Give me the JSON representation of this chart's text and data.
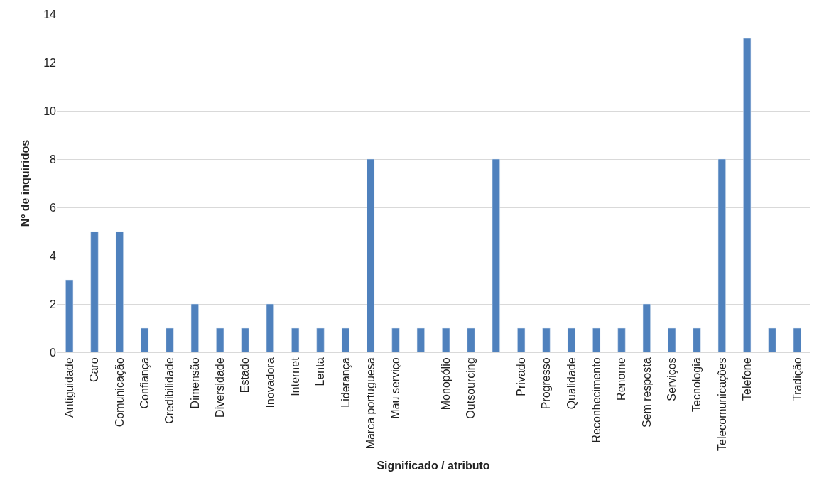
{
  "chart_data": {
    "type": "bar",
    "xlabel": "Significado / atributo",
    "ylabel": "Nº de inquiridos",
    "categories": [
      "Antiguidade",
      "Caro",
      "Comunicação",
      "Confiança",
      "Credibilidade",
      "Dimensão",
      "Diversidade",
      "Estado",
      "Inovadora",
      "Internet",
      "Lenta",
      "Liderança",
      "Marca portuguesa",
      "Mau serviço",
      null,
      "Monopólio",
      "Outsourcing",
      null,
      "Privado",
      "Progresso",
      "Qualidade",
      "Reconhecimento",
      "Renome",
      "Sem resposta",
      "Serviços",
      "Tecnologia",
      "Telecomunicações",
      "Telefone",
      null,
      "Tradição"
    ],
    "values": [
      3,
      5,
      5,
      1,
      1,
      2,
      1,
      1,
      2,
      1,
      1,
      1,
      8,
      1,
      1,
      1,
      1,
      8,
      1,
      1,
      1,
      1,
      1,
      2,
      1,
      1,
      8,
      13,
      1,
      1
    ],
    "color": "#4f81bd",
    "ylim": [
      0,
      14
    ],
    "yticks": [
      0,
      2,
      4,
      6,
      8,
      10,
      12,
      14
    ],
    "grid": "y"
  }
}
